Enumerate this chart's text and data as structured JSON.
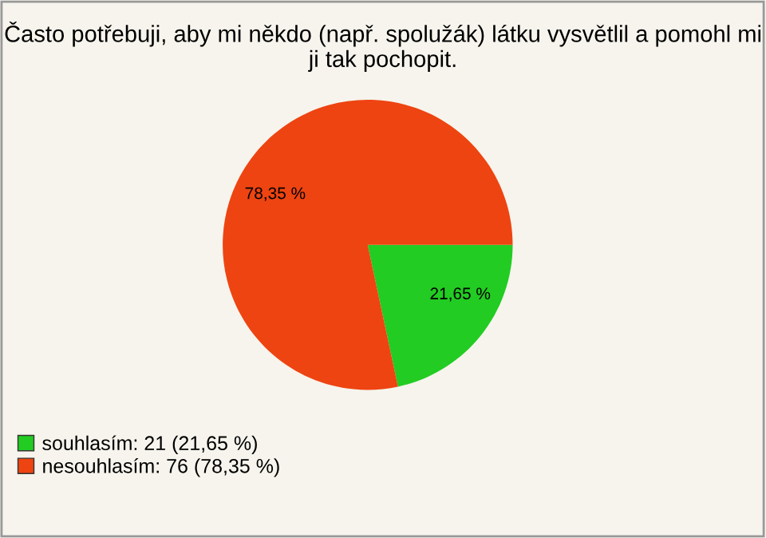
{
  "chart_data": {
    "type": "pie",
    "title": "Často potřebuji, aby mi někdo (např. spolužák) látku vysvětlil a pomohl mi ji tak pochopit.",
    "categories": [
      "souhlasím: 21 (21,65 %)",
      "nesouhlasím: 76 (78,35 %)"
    ],
    "values": [
      21.65,
      78.35
    ],
    "colors": [
      "#22cc22",
      "#ee4411"
    ],
    "value_labels": [
      "21,65 %",
      "78,35 %"
    ],
    "legend": "bottom left"
  }
}
